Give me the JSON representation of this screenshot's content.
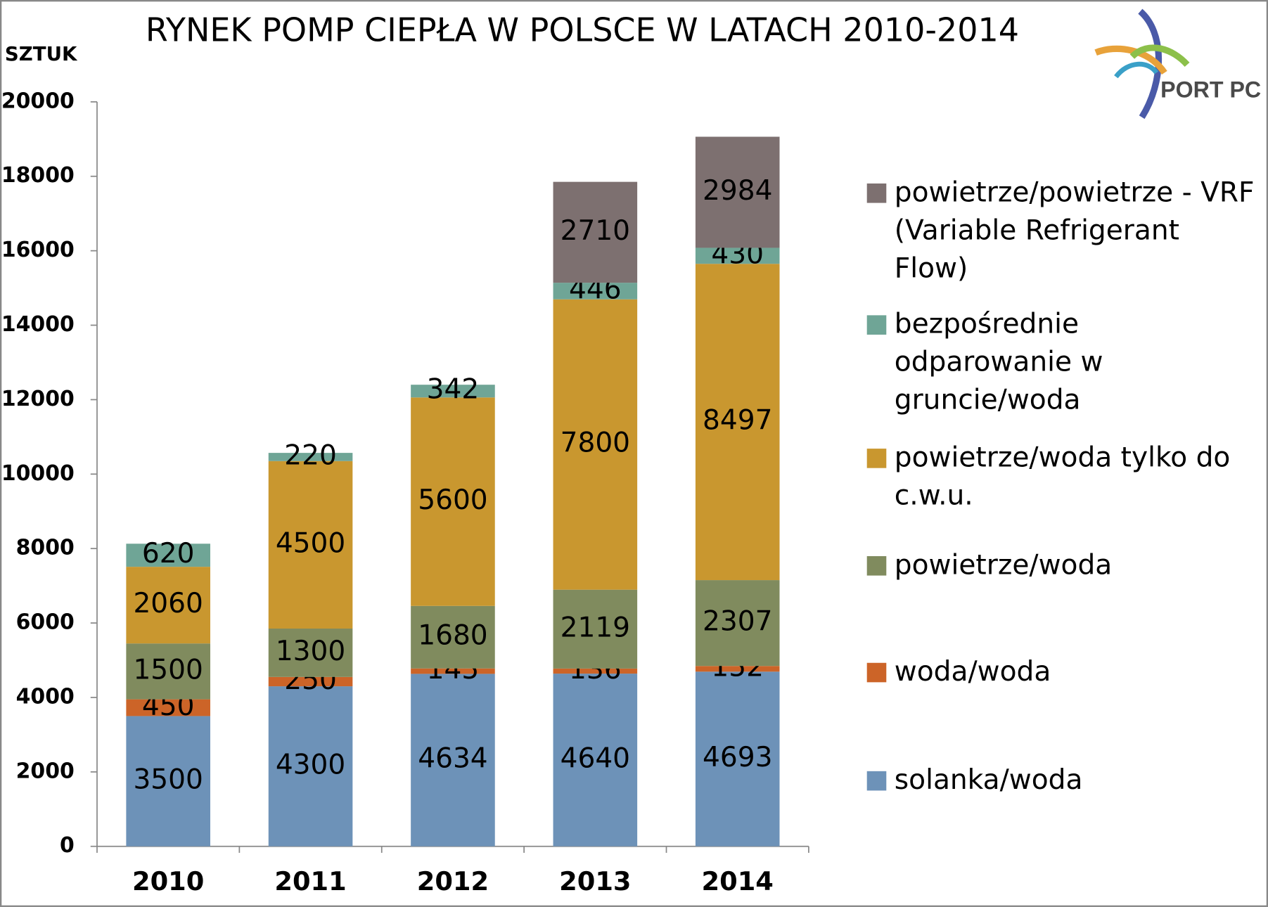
{
  "chart_data": {
    "type": "stacked_bar",
    "title": "RYNEK POMP CIEPŁA W POLSCE W LATACH 2010-2014",
    "y_label": "SZTUK",
    "logo": "PORT PC",
    "categories": [
      "2010",
      "2011",
      "2012",
      "2013",
      "2014"
    ],
    "ylim": [
      0,
      20000
    ],
    "yticks": [
      0,
      2000,
      4000,
      6000,
      8000,
      10000,
      12000,
      14000,
      16000,
      18000,
      20000
    ],
    "series": [
      {
        "name": "solanka/woda",
        "color": "#6d92b8",
        "values": [
          3500,
          4300,
          4634,
          4640,
          4693
        ]
      },
      {
        "name": "woda/woda",
        "color": "#cc6428",
        "values": [
          450,
          250,
          145,
          136,
          152
        ]
      },
      {
        "name": "powietrze/woda",
        "color": "#808b5e",
        "values": [
          1500,
          1300,
          1680,
          2119,
          2307
        ]
      },
      {
        "name": "powietrze/woda tylko do c.w.u.",
        "color": "#c9972f",
        "values": [
          2060,
          4500,
          5600,
          7800,
          8497
        ]
      },
      {
        "name": "bezpośrednie odparowanie w gruncie/woda",
        "color": "#6fa596",
        "values": [
          620,
          220,
          342,
          446,
          430
        ]
      },
      {
        "name": "powietrze/powietrze - VRF (Variable Refrigerant Flow)",
        "color": "#7d7070",
        "values": [
          null,
          null,
          null,
          2710,
          2984
        ]
      }
    ]
  }
}
